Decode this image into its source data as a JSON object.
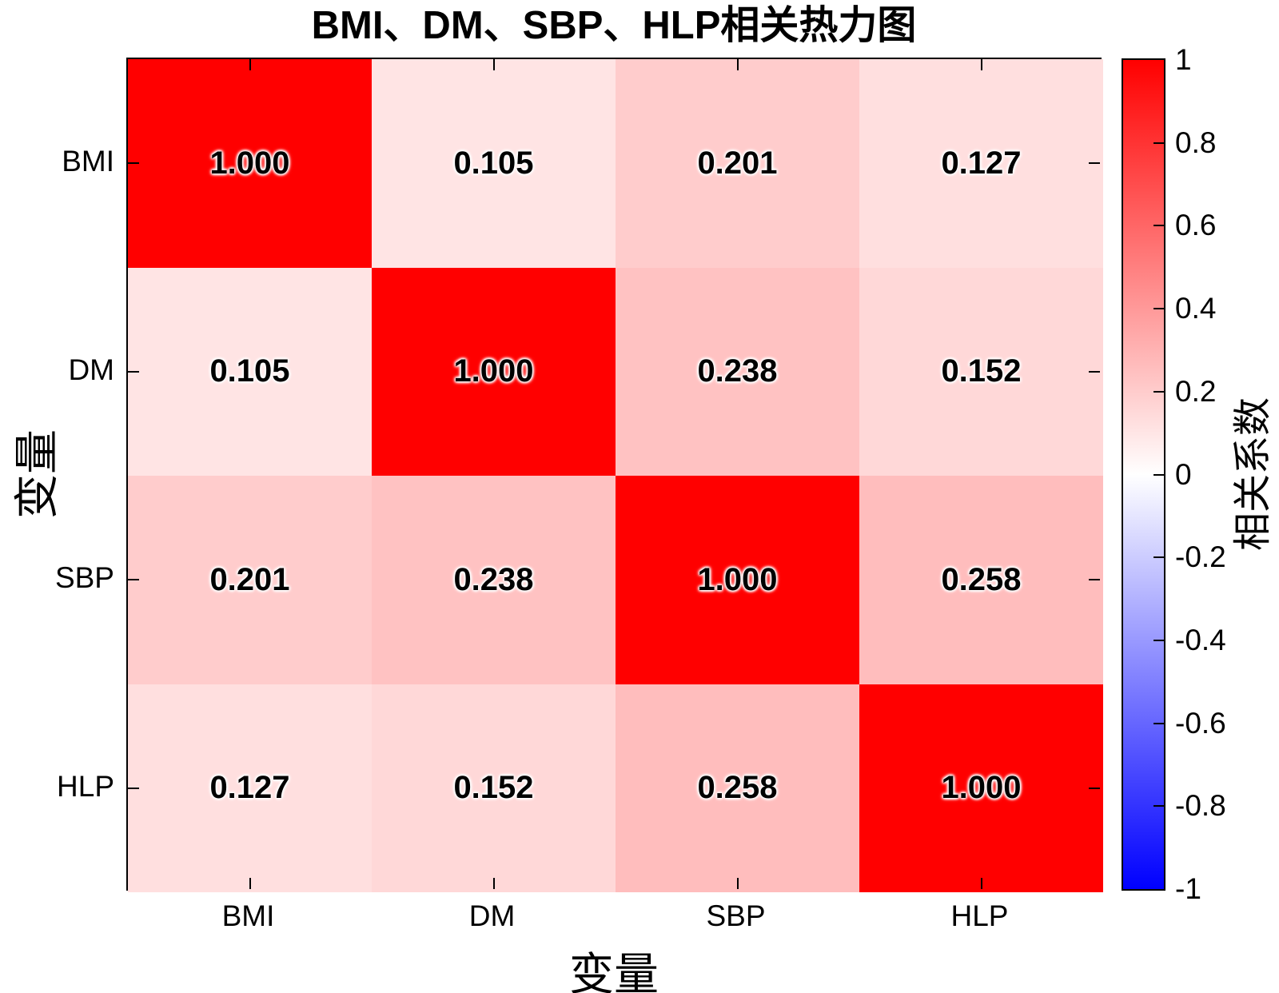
{
  "title": "BMI、DM、SBP、HLP相关热力图",
  "chart_data": {
    "type": "heatmap",
    "title": "BMI、DM、SBP、HLP相关热力图",
    "xlabel": "变量",
    "ylabel": "变量",
    "x_categories": [
      "BMI",
      "DM",
      "SBP",
      "HLP"
    ],
    "y_categories": [
      "BMI",
      "DM",
      "SBP",
      "HLP"
    ],
    "matrix": [
      [
        1.0,
        0.105,
        0.201,
        0.127
      ],
      [
        0.105,
        1.0,
        0.238,
        0.152
      ],
      [
        0.201,
        0.238,
        1.0,
        0.258
      ],
      [
        0.127,
        0.152,
        0.258,
        1.0
      ]
    ],
    "value_decimals": 3,
    "grid": false,
    "colorbar": {
      "label": "相关系数",
      "min": -1,
      "max": 1,
      "ticks": [
        1,
        0.8,
        0.6,
        0.4,
        0.2,
        0,
        -0.2,
        -0.4,
        -0.6,
        -0.8,
        -1
      ],
      "color_max": "#ff0000",
      "color_mid": "#ffffff",
      "color_min": "#0000ff"
    }
  }
}
